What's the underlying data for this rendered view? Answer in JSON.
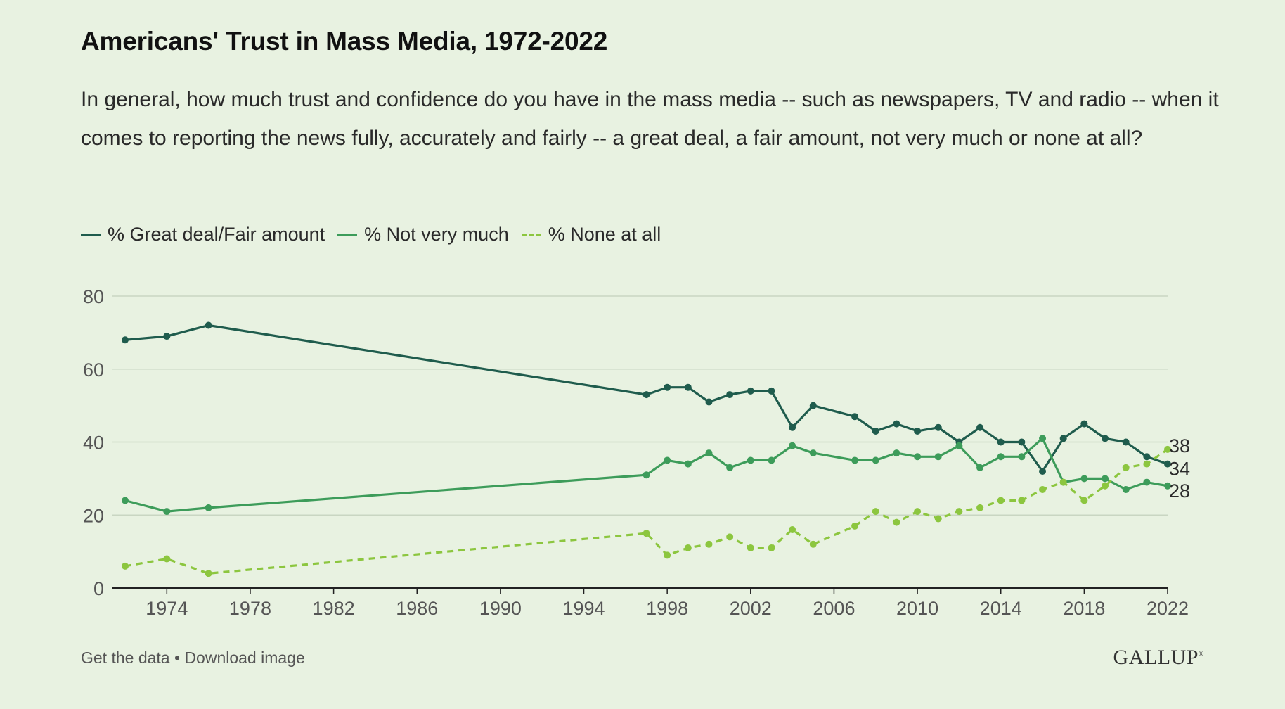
{
  "title": "Americans' Trust in Mass Media, 1972-2022",
  "subtitle": "In general, how much trust and confidence do you have in the mass media -- such as newspapers, TV and radio -- when it comes to reporting the news fully, accurately and fairly -- a great deal, a fair amount, not very much or none at all?",
  "footer": {
    "get_data": "Get the data",
    "separator": "•",
    "download": "Download image",
    "brand": "GALLUP",
    "brand_mark": "®"
  },
  "chart_data": {
    "type": "line",
    "title": "Americans' Trust in Mass Media, 1972-2022",
    "xlabel": "",
    "ylabel": "",
    "xlim": [
      1972,
      2022
    ],
    "ylim": [
      0,
      80
    ],
    "yticks": [
      0,
      20,
      40,
      60,
      80
    ],
    "xticks": [
      1974,
      1978,
      1982,
      1986,
      1990,
      1994,
      1998,
      2002,
      2006,
      2010,
      2014,
      2018,
      2022
    ],
    "grid": true,
    "legend_position": "top-left",
    "x": [
      1972,
      1974,
      1976,
      1997,
      1998,
      1999,
      2000,
      2001,
      2002,
      2003,
      2004,
      2005,
      2007,
      2008,
      2009,
      2010,
      2011,
      2012,
      2013,
      2014,
      2015,
      2016,
      2017,
      2018,
      2019,
      2020,
      2021,
      2022
    ],
    "series": [
      {
        "name": "% Great deal/Fair amount",
        "color": "#1f5c4d",
        "dashed": false,
        "values": [
          68,
          69,
          72,
          53,
          55,
          55,
          51,
          53,
          54,
          54,
          44,
          50,
          47,
          43,
          45,
          43,
          44,
          40,
          44,
          40,
          40,
          32,
          41,
          45,
          41,
          40,
          36,
          34
        ],
        "end_label": "34"
      },
      {
        "name": "% Not very much",
        "color": "#3d9c5a",
        "dashed": false,
        "values": [
          24,
          21,
          22,
          31,
          35,
          34,
          37,
          33,
          35,
          35,
          39,
          37,
          35,
          35,
          37,
          36,
          36,
          39,
          33,
          36,
          36,
          41,
          29,
          30,
          30,
          27,
          29,
          28
        ],
        "end_label": "28"
      },
      {
        "name": "% None at all",
        "color": "#8cc63f",
        "dashed": true,
        "values": [
          6,
          8,
          4,
          15,
          9,
          11,
          12,
          14,
          11,
          11,
          16,
          12,
          17,
          21,
          18,
          21,
          19,
          21,
          22,
          24,
          24,
          27,
          29,
          24,
          28,
          33,
          34,
          38
        ],
        "end_label": "38"
      }
    ]
  }
}
